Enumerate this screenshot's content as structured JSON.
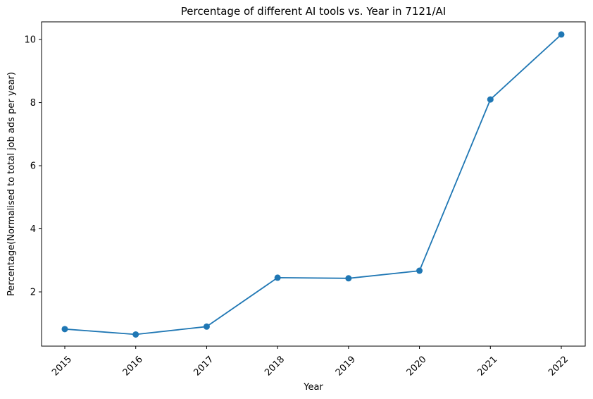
{
  "chart_data": {
    "type": "line",
    "title": "Percentage of different AI tools vs. Year in 7121/AI",
    "xlabel": "Year",
    "ylabel": "Percentage(Normalised to total job ads per year)",
    "x": [
      "2015",
      "2016",
      "2017",
      "2018",
      "2019",
      "2020",
      "2021",
      "2022"
    ],
    "series": [
      {
        "values": [
          0.82,
          0.65,
          0.9,
          2.45,
          2.43,
          2.67,
          8.1,
          10.16
        ],
        "color": "#1f77b4",
        "marker": "circle"
      }
    ],
    "yticks": [
      "2",
      "4",
      "6",
      "8",
      "10"
    ],
    "ylim": [
      0.28,
      10.56
    ],
    "xtick_rotation": 45,
    "grid": false,
    "legend": "none"
  }
}
